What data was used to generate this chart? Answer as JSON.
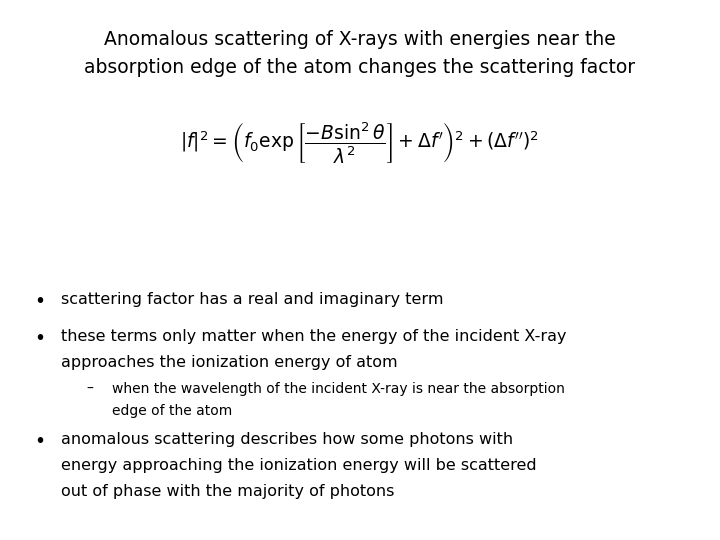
{
  "title_line1": "Anomalous scattering of X-rays with energies near the",
  "title_line2": "absorption edge of the atom changes the scattering factor",
  "formula": "$|f|^2 = \\left( f_0 \\exp\\left[\\dfrac{-B\\sin^2\\theta}{\\lambda^2}\\right] + \\Delta f^{\\prime} \\right)^2 + (\\Delta f^{\\prime\\prime})^2$",
  "bullet1": "scattering factor has a real and imaginary term",
  "bullet2_line1": "these terms only matter when the energy of the incident X-ray",
  "bullet2_line2": "approaches the ionization energy of atom",
  "sub_bullet_line1": "when the wavelength of the incident X-ray is near the absorption",
  "sub_bullet_line2": "edge of the atom",
  "bullet3_line1": "anomalous scattering describes how some photons with",
  "bullet3_line2": "energy approaching the ionization energy will be scattered",
  "bullet3_line3": "out of phase with the majority of photons",
  "bg_color": "#ffffff",
  "text_color": "#000000",
  "title_fontsize": 13.5,
  "body_fontsize": 11.5,
  "sub_fontsize": 10.0,
  "formula_fontsize": 13.5
}
